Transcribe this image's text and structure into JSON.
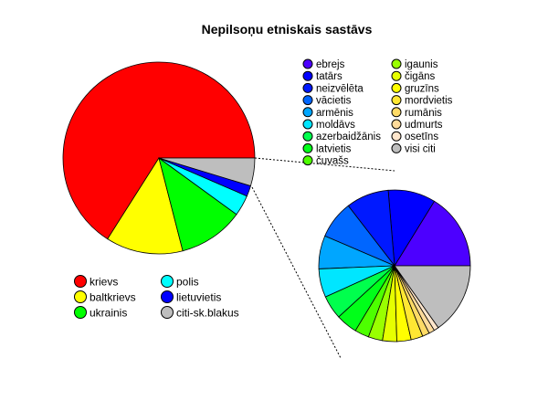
{
  "chart_data": [
    {
      "type": "pie",
      "title": "Nepilsoņu etniskais sastāvs",
      "slices": [
        {
          "label": "krievs",
          "value": 66,
          "color": "#ff0000"
        },
        {
          "label": "baltkrievs",
          "value": 13,
          "color": "#ffff00"
        },
        {
          "label": "ukrainis",
          "value": 11,
          "color": "#00ff00"
        },
        {
          "label": "polis",
          "value": 3.5,
          "color": "#00ffff"
        },
        {
          "label": "lietuvietis",
          "value": 1.8,
          "color": "#0000ff"
        },
        {
          "label": "citi-sk.blakus",
          "value": 4.7,
          "color": "#bebebe"
        }
      ],
      "legend_placement": "bottom-left",
      "legend_columns": 2
    },
    {
      "type": "pie",
      "title": "",
      "slices": [
        {
          "label": "ebrejs",
          "value": 16,
          "color": "#4c00ff"
        },
        {
          "label": "tatārs",
          "value": 10,
          "color": "#0000ff"
        },
        {
          "label": "neizvēlēta",
          "value": 9,
          "color": "#0019ff"
        },
        {
          "label": "vācietis",
          "value": 8,
          "color": "#0066ff"
        },
        {
          "label": "armēnis",
          "value": 7,
          "color": "#00a6ff"
        },
        {
          "label": "moldāvs",
          "value": 6,
          "color": "#00e6ff"
        },
        {
          "label": "azerbaidžānis",
          "value": 5,
          "color": "#00ff4d"
        },
        {
          "label": "latvietis",
          "value": 4.5,
          "color": "#00ff19"
        },
        {
          "label": "čuvašs",
          "value": 3,
          "color": "#4dff00"
        },
        {
          "label": "igaunis",
          "value": 3,
          "color": "#99ff00"
        },
        {
          "label": "čigāns",
          "value": 3,
          "color": "#e6ff00"
        },
        {
          "label": "gruzīns",
          "value": 3,
          "color": "#ffff00"
        },
        {
          "label": "mordvietis",
          "value": 2.5,
          "color": "#ffe733"
        },
        {
          "label": "rumānis",
          "value": 1.5,
          "color": "#ffdb66"
        },
        {
          "label": "udmurts",
          "value": 1.2,
          "color": "#ffdb9a"
        },
        {
          "label": "osetīns",
          "value": 1,
          "color": "#ffe6cc"
        },
        {
          "label": "visi citi",
          "value": 15,
          "color": "#bebebe"
        }
      ],
      "legend_placement": "top",
      "legend_columns": 2
    }
  ]
}
